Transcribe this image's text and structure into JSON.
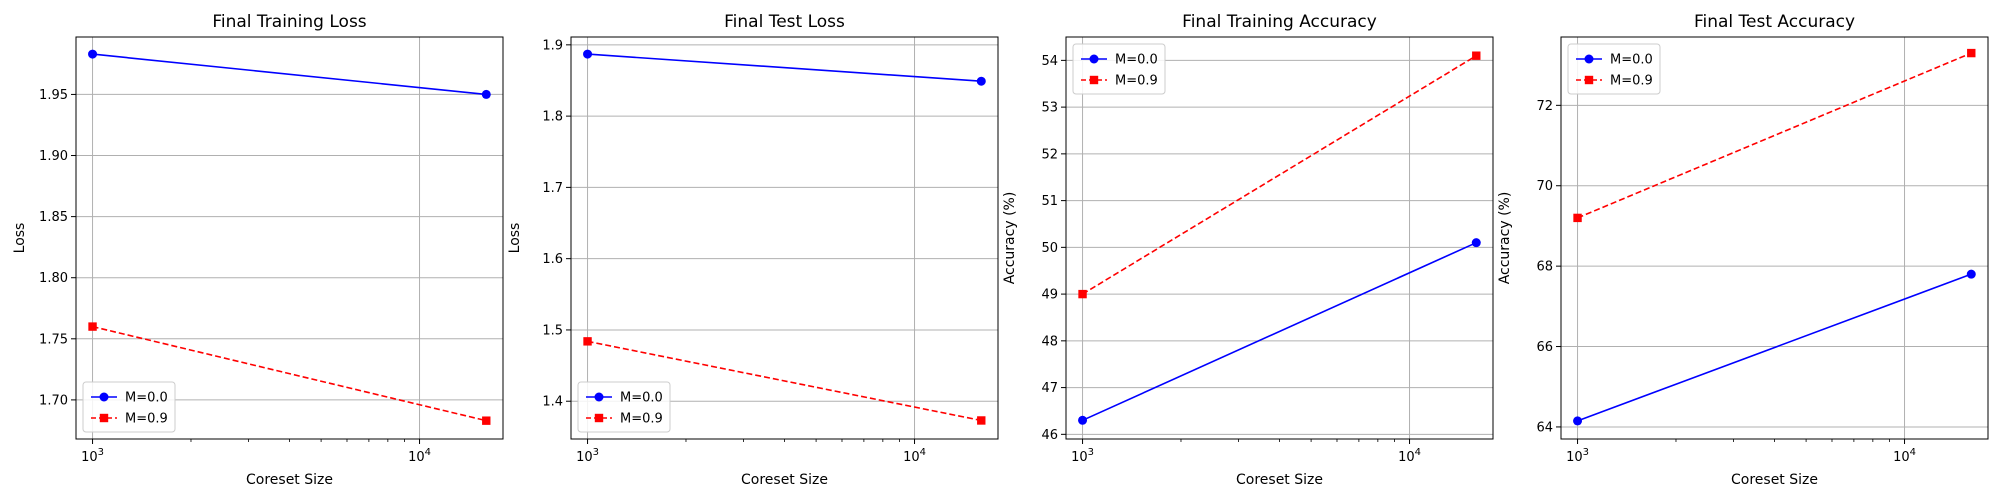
{
  "figure": {
    "background": "#ffffff"
  },
  "chart_data": [
    {
      "type": "line",
      "title": "Final Training Loss",
      "xlabel": "Coreset Size",
      "ylabel": "Loss",
      "xscale": "log",
      "xlim": [
        890,
        18000
      ],
      "ylim": [
        1.668,
        1.997
      ],
      "xticks": [
        1000,
        10000
      ],
      "xtick_labels": [
        {
          "base": "10",
          "exp": "3"
        },
        {
          "base": "10",
          "exp": "4"
        }
      ],
      "yticks": [
        1.7,
        1.75,
        1.8,
        1.85,
        1.9,
        1.95
      ],
      "ytick_labels": [
        "1.70",
        "1.75",
        "1.80",
        "1.85",
        "1.90",
        "1.95"
      ],
      "grid": true,
      "legend": "lower left",
      "series": [
        {
          "name": "M=0.0",
          "x": [
            1000,
            16000
          ],
          "y": [
            1.983,
            1.95
          ],
          "color": "#0000ff",
          "marker": "circle",
          "linestyle": "solid"
        },
        {
          "name": "M=0.9",
          "x": [
            1000,
            16000
          ],
          "y": [
            1.76,
            1.683
          ],
          "color": "#ff0000",
          "marker": "square",
          "linestyle": "dashed"
        }
      ]
    },
    {
      "type": "line",
      "title": "Final Test Loss",
      "xlabel": "Coreset Size",
      "ylabel": "Loss",
      "xscale": "log",
      "xlim": [
        890,
        18000
      ],
      "ylim": [
        1.347,
        1.911
      ],
      "xticks": [
        1000,
        10000
      ],
      "xtick_labels": [
        {
          "base": "10",
          "exp": "3"
        },
        {
          "base": "10",
          "exp": "4"
        }
      ],
      "yticks": [
        1.4,
        1.5,
        1.6,
        1.7,
        1.8,
        1.9
      ],
      "ytick_labels": [
        "1.4",
        "1.5",
        "1.6",
        "1.7",
        "1.8",
        "1.9"
      ],
      "grid": true,
      "legend": "lower left",
      "series": [
        {
          "name": "M=0.0",
          "x": [
            1000,
            16000
          ],
          "y": [
            1.887,
            1.849
          ],
          "color": "#0000ff",
          "marker": "circle",
          "linestyle": "solid"
        },
        {
          "name": "M=0.9",
          "x": [
            1000,
            16000
          ],
          "y": [
            1.484,
            1.373
          ],
          "color": "#ff0000",
          "marker": "square",
          "linestyle": "dashed"
        }
      ]
    },
    {
      "type": "line",
      "title": "Final Training Accuracy",
      "xlabel": "Coreset Size",
      "ylabel": "Accuracy (%)",
      "xscale": "log",
      "xlim": [
        890,
        18000
      ],
      "ylim": [
        45.9,
        54.5
      ],
      "xticks": [
        1000,
        10000
      ],
      "xtick_labels": [
        {
          "base": "10",
          "exp": "3"
        },
        {
          "base": "10",
          "exp": "4"
        }
      ],
      "yticks": [
        46,
        47,
        48,
        49,
        50,
        51,
        52,
        53,
        54
      ],
      "ytick_labels": [
        "46",
        "47",
        "48",
        "49",
        "50",
        "51",
        "52",
        "53",
        "54"
      ],
      "grid": true,
      "legend": "upper left",
      "series": [
        {
          "name": "M=0.0",
          "x": [
            1000,
            16000
          ],
          "y": [
            46.3,
            50.1
          ],
          "color": "#0000ff",
          "marker": "circle",
          "linestyle": "solid"
        },
        {
          "name": "M=0.9",
          "x": [
            1000,
            16000
          ],
          "y": [
            49.0,
            54.1
          ],
          "color": "#ff0000",
          "marker": "square",
          "linestyle": "dashed"
        }
      ]
    },
    {
      "type": "line",
      "title": "Final Test Accuracy",
      "xlabel": "Coreset Size",
      "ylabel": "Accuracy (%)",
      "xscale": "log",
      "xlim": [
        890,
        18000
      ],
      "ylim": [
        63.7,
        73.7
      ],
      "xticks": [
        1000,
        10000
      ],
      "xtick_labels": [
        {
          "base": "10",
          "exp": "3"
        },
        {
          "base": "10",
          "exp": "4"
        }
      ],
      "yticks": [
        64,
        66,
        68,
        70,
        72
      ],
      "ytick_labels": [
        "64",
        "66",
        "68",
        "70",
        "72"
      ],
      "grid": true,
      "legend": "upper left",
      "series": [
        {
          "name": "M=0.0",
          "x": [
            1000,
            16000
          ],
          "y": [
            64.15,
            67.8
          ],
          "color": "#0000ff",
          "marker": "circle",
          "linestyle": "solid"
        },
        {
          "name": "M=0.9",
          "x": [
            1000,
            16000
          ],
          "y": [
            69.2,
            73.3
          ],
          "color": "#ff0000",
          "marker": "square",
          "linestyle": "dashed"
        }
      ]
    }
  ]
}
